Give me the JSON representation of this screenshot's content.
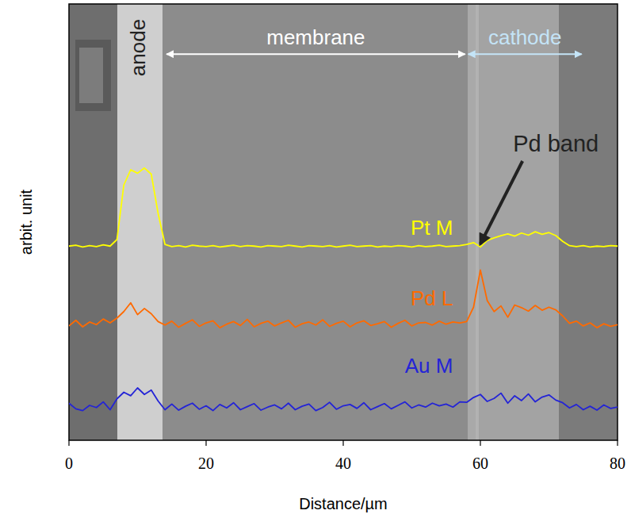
{
  "chart_data": {
    "type": "line",
    "xlabel": "Distance/µm",
    "ylabel": "arbit. unit",
    "xlim": [
      0,
      80
    ],
    "xticks": [
      0,
      20,
      40,
      60,
      80
    ],
    "ylim": [
      0,
      100
    ],
    "tick_labels": "x",
    "x": [
      0,
      1,
      2,
      3,
      4,
      5,
      6,
      7,
      8,
      9,
      10,
      11,
      12,
      13,
      14,
      15,
      16,
      17,
      18,
      19,
      20,
      21,
      22,
      23,
      24,
      25,
      26,
      27,
      28,
      29,
      30,
      31,
      32,
      33,
      34,
      35,
      36,
      37,
      38,
      39,
      40,
      41,
      42,
      43,
      44,
      45,
      46,
      47,
      48,
      49,
      50,
      51,
      52,
      53,
      54,
      55,
      56,
      57,
      58,
      59,
      60,
      61,
      62,
      63,
      64,
      65,
      66,
      67,
      68,
      69,
      70,
      71,
      72,
      73,
      74,
      75,
      76,
      77,
      78,
      79,
      80
    ],
    "series": [
      {
        "name": "Pt M",
        "color": "#ffff00",
        "values": [
          44.5,
          44.7,
          44.3,
          44.6,
          44.4,
          44.8,
          44.5,
          46.0,
          58.5,
          62.0,
          61.2,
          62.4,
          61.0,
          52.0,
          44.9,
          44.4,
          44.6,
          44.3,
          44.7,
          44.5,
          44.4,
          44.6,
          44.3,
          44.5,
          44.7,
          44.4,
          44.6,
          44.5,
          44.3,
          44.6,
          44.5,
          44.4,
          44.7,
          44.5,
          44.3,
          44.6,
          44.5,
          44.4,
          44.6,
          44.3,
          44.5,
          44.7,
          44.4,
          44.5,
          44.6,
          44.3,
          44.5,
          44.4,
          44.6,
          44.5,
          44.3,
          44.6,
          44.4,
          44.5,
          44.7,
          44.4,
          44.5,
          44.6,
          44.9,
          45.3,
          44.3,
          45.8,
          46.4,
          46.9,
          47.3,
          46.8,
          47.5,
          47.0,
          47.8,
          47.2,
          47.6,
          46.9,
          45.6,
          44.6,
          44.4,
          44.6,
          44.3,
          44.5,
          44.4,
          44.6,
          44.5
        ]
      },
      {
        "name": "Pd L",
        "color": "#ff6a00",
        "values": [
          26.2,
          27.5,
          26.0,
          27.1,
          26.5,
          27.8,
          26.9,
          28.0,
          29.5,
          31.5,
          28.8,
          30.2,
          29.0,
          27.2,
          26.4,
          27.3,
          25.9,
          26.8,
          27.6,
          26.1,
          26.9,
          27.4,
          25.8,
          26.6,
          27.2,
          26.3,
          27.7,
          26.0,
          26.8,
          27.3,
          26.2,
          26.9,
          27.5,
          25.9,
          26.7,
          27.1,
          26.4,
          27.6,
          26.1,
          26.8,
          27.3,
          26.0,
          26.9,
          27.4,
          26.3,
          26.7,
          27.2,
          25.9,
          26.8,
          27.5,
          26.2,
          26.9,
          27.0,
          26.4,
          27.3,
          26.6,
          27.1,
          26.9,
          27.2,
          30.5,
          39.0,
          32.0,
          29.5,
          30.8,
          28.2,
          31.0,
          30.4,
          29.6,
          30.9,
          29.8,
          30.5,
          29.9,
          28.5,
          26.8,
          27.3,
          26.2,
          26.9,
          25.8,
          26.7,
          26.1,
          26.5
        ]
      },
      {
        "name": "Au M",
        "color": "#2424d6",
        "values": [
          8.5,
          7.2,
          6.8,
          8.0,
          7.5,
          8.8,
          7.0,
          9.5,
          11.0,
          10.2,
          12.0,
          10.5,
          11.5,
          9.0,
          7.0,
          8.3,
          6.9,
          7.8,
          8.5,
          7.1,
          7.9,
          6.8,
          8.2,
          7.4,
          8.6,
          7.0,
          7.7,
          8.4,
          6.9,
          7.6,
          8.1,
          7.2,
          8.5,
          7.0,
          7.8,
          8.3,
          6.8,
          7.5,
          8.7,
          7.1,
          7.9,
          8.2,
          7.3,
          8.6,
          7.0,
          7.7,
          8.4,
          7.2,
          8.0,
          8.8,
          7.4,
          8.1,
          7.6,
          8.5,
          7.9,
          8.3,
          7.6,
          8.8,
          8.7,
          9.8,
          10.5,
          8.9,
          9.6,
          10.8,
          8.5,
          10.2,
          9.1,
          10.6,
          8.8,
          9.9,
          10.4,
          9.2,
          8.6,
          7.4,
          8.2,
          7.0,
          7.8,
          6.9,
          8.1,
          7.3,
          7.6
        ]
      }
    ],
    "annotations": [
      {
        "text": "anode",
        "x": 10,
        "y": 90,
        "color": "#222222"
      },
      {
        "text": "membrane",
        "x": [
          14,
          58
        ],
        "y": 88.5,
        "color": "#ffffff"
      },
      {
        "text": "cathode",
        "x": [
          58,
          75
        ],
        "y": 88.5,
        "color": "#c4e4f7"
      },
      {
        "text": "Pd band",
        "x": 71,
        "y": 68,
        "target": [
          60,
          45
        ],
        "color": "#222222"
      }
    ]
  }
}
